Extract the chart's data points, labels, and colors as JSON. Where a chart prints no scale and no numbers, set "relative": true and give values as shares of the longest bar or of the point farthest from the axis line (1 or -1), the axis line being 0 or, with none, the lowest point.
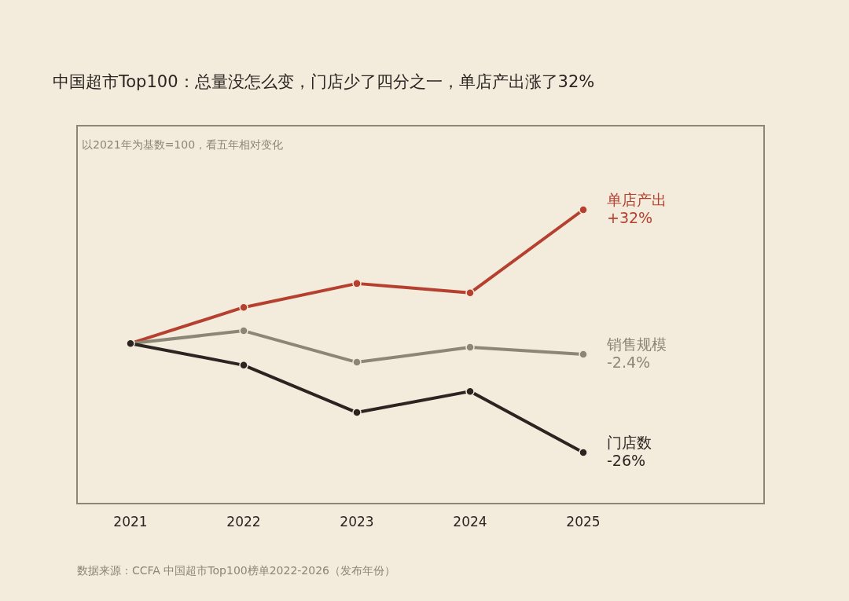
{
  "chart_data": {
    "type": "line",
    "title": "中国超市Top100：总量没怎么变，门店少了四分之一，单店产出涨了32%",
    "subtitle": "以2021年为基数=100，看五年相对变化",
    "categories": [
      "2021",
      "2022",
      "2023",
      "2024",
      "2025"
    ],
    "relative": true,
    "series": [
      {
        "name": "单店产出",
        "color": "#b5402f",
        "values": [
          0.545,
          0.668,
          0.749,
          0.717,
          1
        ]
      },
      {
        "name": "销售规模",
        "color": "#8c8677",
        "values": [
          0.545,
          0.588,
          0.481,
          0.532,
          0.508
        ]
      },
      {
        "name": "门店数",
        "color": "#2b2420",
        "values": [
          0.545,
          0.471,
          0.31,
          0.382,
          0.174
        ]
      }
    ],
    "marker": "circle",
    "annotations": [
      {
        "text": "+32%",
        "x": "2025",
        "y": 1
      },
      {
        "text": "-2.4%",
        "x": "2025",
        "y": 0.508
      },
      {
        "text": "-26%",
        "x": "2025",
        "y": 0.174
      },
      "数据来源：CCFA 中国超市Top100榜单2022-2026（发布年份）"
    ]
  }
}
